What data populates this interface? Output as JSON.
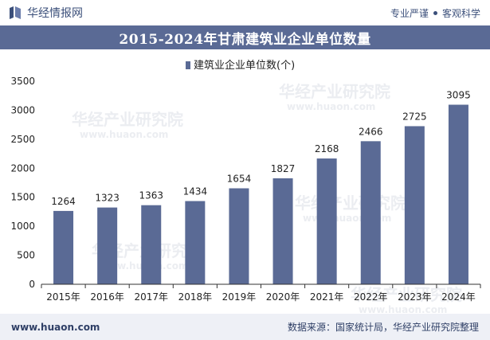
{
  "header": {
    "brand_name": "华经情报网",
    "slogan_left": "专业严谨",
    "slogan_right": "客观科学"
  },
  "title": "2015-2024年甘肃建筑业企业单位数量",
  "footer": {
    "website": "www.huaon.com",
    "source": "数据来源：国家统计局，华经产业研究院整理"
  },
  "watermark": {
    "text": "华经产业研究院",
    "url": "www.huaon.com"
  },
  "colors": {
    "bar": "#5a6a95",
    "title_bg": "#5a6a95",
    "footer_bg": "#eef0f6"
  },
  "chart_data": {
    "type": "bar",
    "categories": [
      "2015年",
      "2016年",
      "2017年",
      "2018年",
      "2019年",
      "2020年",
      "2021年",
      "2022年",
      "2023年",
      "2024年"
    ],
    "series": [
      {
        "name": "建筑业企业单位数(个)",
        "values": [
          1264,
          1323,
          1363,
          1434,
          1654,
          1827,
          2168,
          2466,
          2725,
          3095
        ]
      }
    ],
    "ylim": [
      0,
      3500
    ],
    "yticks": [
      0,
      500,
      1000,
      1500,
      2000,
      2500,
      3000,
      3500
    ],
    "grid": false,
    "legend": "top-center",
    "data_labels": true
  }
}
